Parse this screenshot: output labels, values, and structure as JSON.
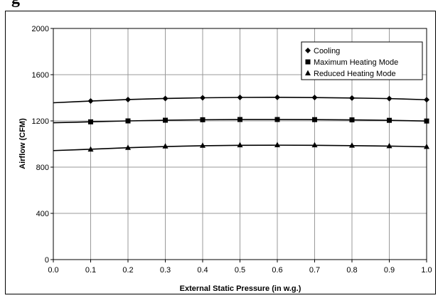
{
  "page": {
    "title_fragment": "g"
  },
  "chart_data": {
    "type": "line",
    "title": "",
    "xlabel": "External Static Pressure (in w.g.)",
    "ylabel": "Airflow (CFM)",
    "xlim": [
      0.0,
      1.0
    ],
    "ylim": [
      0,
      2000
    ],
    "xticks": [
      "0.0",
      "0.1",
      "0.2",
      "0.3",
      "0.4",
      "0.5",
      "0.6",
      "0.7",
      "0.8",
      "0.9",
      "1.0"
    ],
    "yticks": [
      "0",
      "400",
      "800",
      "1200",
      "1600",
      "2000"
    ],
    "grid": true,
    "legend_position": "top-right",
    "x": [
      0.1,
      0.2,
      0.3,
      0.4,
      0.5,
      0.6,
      0.7,
      0.8,
      0.9,
      1.0
    ],
    "series": [
      {
        "name": "Cooling",
        "marker": "diamond",
        "values": [
          1372,
          1385,
          1394,
          1400,
          1403,
          1404,
          1402,
          1398,
          1393,
          1383
        ],
        "fit": [
          1357,
          1372,
          1385,
          1394,
          1400,
          1403,
          1404,
          1402,
          1398,
          1393,
          1383
        ]
      },
      {
        "name": "Maximum Heating Mode",
        "marker": "square",
        "values": [
          1192,
          1200,
          1206,
          1210,
          1212,
          1212,
          1211,
          1209,
          1205,
          1199
        ],
        "fit": [
          1184,
          1192,
          1200,
          1206,
          1210,
          1212,
          1212,
          1211,
          1209,
          1205,
          1199
        ]
      },
      {
        "name": "Reduced Heating Mode",
        "marker": "triangle",
        "values": [
          953,
          968,
          980,
          986,
          990,
          991,
          990,
          987,
          982,
          976
        ],
        "fit": [
          943,
          955,
          968,
          978,
          985,
          989,
          990,
          989,
          986,
          982,
          976
        ]
      }
    ],
    "colors": {
      "line": "#000000",
      "grid": "#999999",
      "background": "#ffffff"
    }
  }
}
